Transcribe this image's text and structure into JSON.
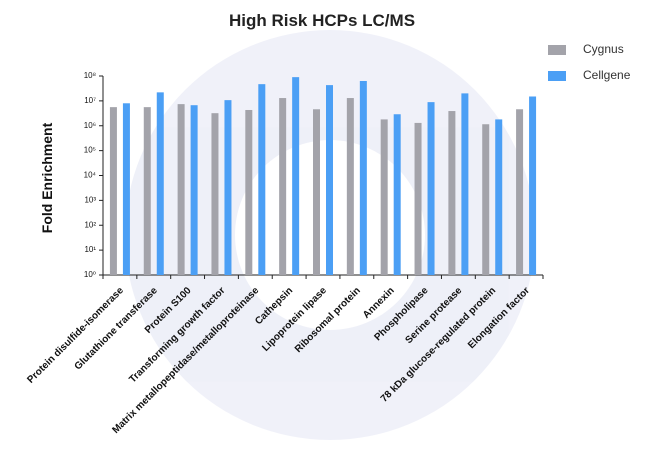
{
  "chart_data": {
    "type": "bar",
    "title": "High Risk HCPs LC/MS",
    "y_label": "Fold Enrichment",
    "categories": [
      "Protein disulfide-isomerase",
      "Glutathione transferase",
      "Protein S100",
      "Transforming growth factor",
      "Matrix metallopeptidase/metalloproteinase",
      "Cathepsin",
      "Lipoprotein lipase",
      "Ribosomal protein",
      "Annexin",
      "Phospholipase",
      "Serine protease",
      "78 kDa glucose-regulated protein",
      "Elongation factor"
    ],
    "series": [
      {
        "name": "Cygnus",
        "color": "#a3a3aa",
        "values": [
          5600000,
          5600000,
          7400000,
          3200000,
          4300000,
          13000000,
          4600000,
          13000000,
          1800000,
          1300000,
          3900000,
          1150000,
          4600000
        ]
      },
      {
        "name": "Cellgene",
        "color": "#4b9ff5",
        "values": [
          8000000,
          22000000,
          6700000,
          10700000,
          47000000,
          90000000,
          43000000,
          63000000,
          2900000,
          8900000,
          20000000,
          1800000,
          15000000
        ]
      }
    ],
    "log_scale": true,
    "ylim": [
      1,
      100000000
    ],
    "yticks": [
      {
        "value": 1,
        "label": "10⁰"
      },
      {
        "value": 10,
        "label": "10¹"
      },
      {
        "value": 100,
        "label": "10²"
      },
      {
        "value": 1000,
        "label": "10³"
      },
      {
        "value": 10000,
        "label": "10⁴"
      },
      {
        "value": 100000,
        "label": "10⁵"
      },
      {
        "value": 1000000,
        "label": "10⁶"
      },
      {
        "value": 10000000,
        "label": "10⁷"
      },
      {
        "value": 100000000,
        "label": "10⁸"
      }
    ],
    "legend": "top-right"
  }
}
